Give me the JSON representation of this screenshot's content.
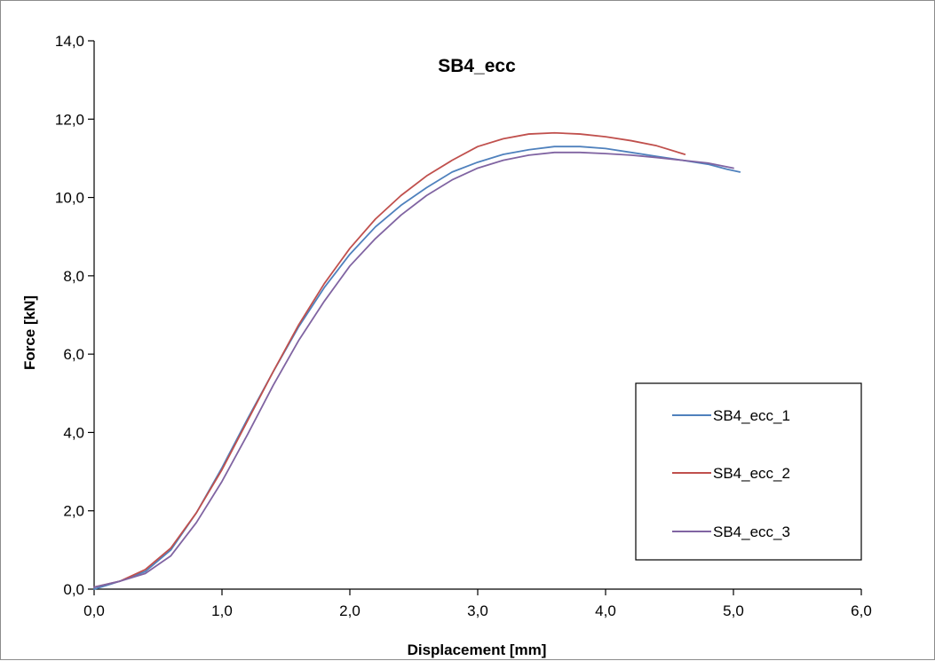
{
  "chart_data": {
    "type": "line",
    "title": "SB4_ecc",
    "xlabel": "Displacement [mm]",
    "ylabel": "Force [kN]",
    "xlim": [
      0,
      6
    ],
    "ylim": [
      0,
      14
    ],
    "x_ticks": [
      "0,0",
      "1,0",
      "2,0",
      "3,0",
      "4,0",
      "5,0",
      "6,0"
    ],
    "y_ticks": [
      "0,0",
      "2,0",
      "4,0",
      "6,0",
      "8,0",
      "10,0",
      "12,0",
      "14,0"
    ],
    "grid": false,
    "legend_position": "right",
    "series": [
      {
        "name": "SB4_ecc_1",
        "color": "#4f81bd",
        "points": [
          [
            0.0,
            0.0
          ],
          [
            0.2,
            0.2
          ],
          [
            0.4,
            0.45
          ],
          [
            0.6,
            1.0
          ],
          [
            0.8,
            1.95
          ],
          [
            1.0,
            3.1
          ],
          [
            1.2,
            4.35
          ],
          [
            1.4,
            5.55
          ],
          [
            1.6,
            6.7
          ],
          [
            1.8,
            7.7
          ],
          [
            2.0,
            8.55
          ],
          [
            2.2,
            9.25
          ],
          [
            2.4,
            9.8
          ],
          [
            2.6,
            10.25
          ],
          [
            2.8,
            10.65
          ],
          [
            3.0,
            10.9
          ],
          [
            3.2,
            11.1
          ],
          [
            3.4,
            11.22
          ],
          [
            3.6,
            11.3
          ],
          [
            3.8,
            11.3
          ],
          [
            4.0,
            11.25
          ],
          [
            4.2,
            11.15
          ],
          [
            4.4,
            11.05
          ],
          [
            4.6,
            10.95
          ],
          [
            4.8,
            10.85
          ],
          [
            4.95,
            10.72
          ],
          [
            5.05,
            10.65
          ]
        ]
      },
      {
        "name": "SB4_ecc_2",
        "color": "#c0504d",
        "points": [
          [
            0.0,
            0.05
          ],
          [
            0.2,
            0.2
          ],
          [
            0.4,
            0.5
          ],
          [
            0.6,
            1.05
          ],
          [
            0.8,
            1.95
          ],
          [
            1.0,
            3.05
          ],
          [
            1.2,
            4.3
          ],
          [
            1.4,
            5.55
          ],
          [
            1.6,
            6.75
          ],
          [
            1.8,
            7.8
          ],
          [
            2.0,
            8.7
          ],
          [
            2.2,
            9.45
          ],
          [
            2.4,
            10.05
          ],
          [
            2.6,
            10.55
          ],
          [
            2.8,
            10.95
          ],
          [
            3.0,
            11.3
          ],
          [
            3.2,
            11.5
          ],
          [
            3.4,
            11.62
          ],
          [
            3.6,
            11.65
          ],
          [
            3.8,
            11.62
          ],
          [
            4.0,
            11.55
          ],
          [
            4.2,
            11.45
          ],
          [
            4.4,
            11.32
          ],
          [
            4.62,
            11.1
          ]
        ]
      },
      {
        "name": "SB4_ecc_3",
        "color": "#8064a2",
        "points": [
          [
            0.0,
            0.05
          ],
          [
            0.2,
            0.2
          ],
          [
            0.4,
            0.4
          ],
          [
            0.6,
            0.85
          ],
          [
            0.8,
            1.7
          ],
          [
            1.0,
            2.75
          ],
          [
            1.2,
            3.95
          ],
          [
            1.4,
            5.2
          ],
          [
            1.6,
            6.35
          ],
          [
            1.8,
            7.35
          ],
          [
            2.0,
            8.25
          ],
          [
            2.2,
            8.95
          ],
          [
            2.4,
            9.55
          ],
          [
            2.6,
            10.05
          ],
          [
            2.8,
            10.45
          ],
          [
            3.0,
            10.75
          ],
          [
            3.2,
            10.95
          ],
          [
            3.4,
            11.08
          ],
          [
            3.6,
            11.15
          ],
          [
            3.8,
            11.15
          ],
          [
            4.0,
            11.12
          ],
          [
            4.2,
            11.08
          ],
          [
            4.4,
            11.02
          ],
          [
            4.6,
            10.95
          ],
          [
            4.8,
            10.88
          ],
          [
            5.0,
            10.75
          ]
        ]
      }
    ]
  }
}
